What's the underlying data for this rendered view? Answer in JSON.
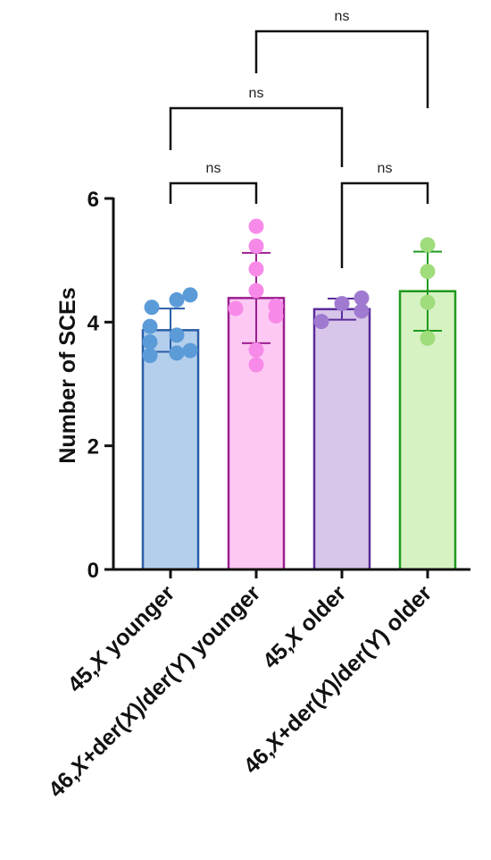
{
  "chart_data": {
    "type": "bar",
    "title": "",
    "xlabel": "",
    "ylabel": "Number of SCEs",
    "ylim": [
      0,
      6
    ],
    "yticks": [
      0,
      2,
      4,
      6
    ],
    "grid": false,
    "legend": "none",
    "categories": [
      {
        "parts": [
          {
            "t": "45,",
            "i": false
          },
          {
            "t": "X",
            "i": true
          },
          {
            "t": " younger",
            "i": false
          }
        ]
      },
      {
        "parts": [
          {
            "t": "46,",
            "i": false
          },
          {
            "t": "X",
            "i": true
          },
          {
            "t": "+der(",
            "i": false
          },
          {
            "t": "X",
            "i": true
          },
          {
            "t": ")/der(",
            "i": false
          },
          {
            "t": "Y",
            "i": true
          },
          {
            "t": ") younger",
            "i": false
          }
        ]
      },
      {
        "parts": [
          {
            "t": "45,",
            "i": false
          },
          {
            "t": "X",
            "i": true
          },
          {
            "t": " older",
            "i": false
          }
        ]
      },
      {
        "parts": [
          {
            "t": "46,",
            "i": false
          },
          {
            "t": "X",
            "i": true
          },
          {
            "t": "+der(",
            "i": false
          },
          {
            "t": "X",
            "i": true
          },
          {
            "t": ")/der(",
            "i": false
          },
          {
            "t": "Y",
            "i": true
          },
          {
            "t": ") older",
            "i": false
          }
        ]
      }
    ],
    "values": [
      3.87,
      4.39,
      4.21,
      4.5
    ],
    "error_sd": [
      0.35,
      0.73,
      0.17,
      0.64
    ],
    "points": [
      [
        3.93,
        4.24,
        4.36,
        4.44,
        3.68,
        3.79,
        3.46,
        3.5,
        3.54
      ],
      [
        5.55,
        5.23,
        4.86,
        4.51,
        4.22,
        4.26,
        4.1,
        3.55,
        3.31
      ],
      [
        4.01,
        4.3,
        4.39,
        4.18
      ],
      [
        5.25,
        4.82,
        4.32,
        3.74
      ]
    ],
    "colors": [
      {
        "fill": "#b3cfec",
        "stroke": "#2a5fa8",
        "point": "#5b9bd8"
      },
      {
        "fill": "#fdc8f3",
        "stroke": "#9b1f8f",
        "point": "#f78ae8"
      },
      {
        "fill": "#d7c5ea",
        "stroke": "#5b2c9a",
        "point": "#a07ad0"
      },
      {
        "fill": "#d6f2c2",
        "stroke": "#1e9a1e",
        "point": "#9fdc7c"
      }
    ],
    "comparisons": [
      {
        "a": 0,
        "b": 1,
        "label": "ns"
      },
      {
        "a": 2,
        "b": 3,
        "label": "ns"
      },
      {
        "a": 0,
        "b": 2,
        "label": "ns"
      },
      {
        "a": 1,
        "b": 3,
        "label": "ns"
      }
    ]
  }
}
